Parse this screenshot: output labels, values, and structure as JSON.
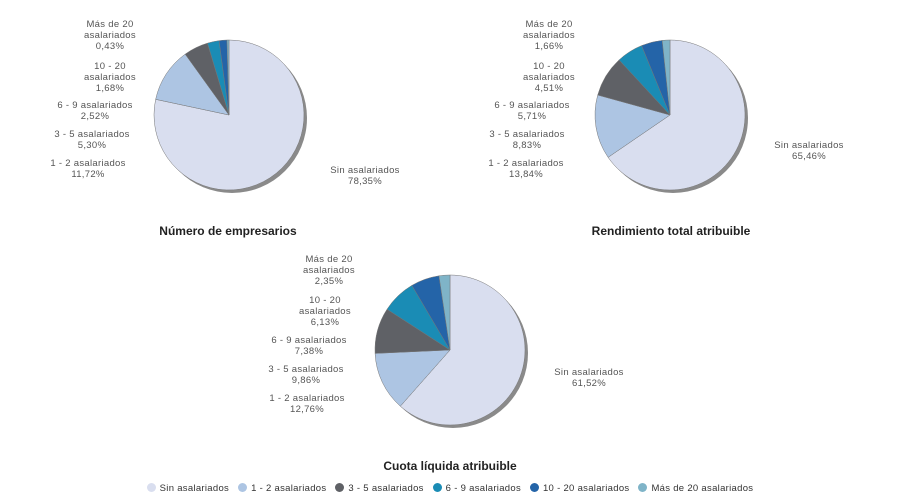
{
  "chart_data": [
    {
      "type": "pie",
      "title": "Número de empresarios",
      "categories": [
        "Sin asalariados",
        "1 - 2 asalariados",
        "3 - 5 asalariados",
        "6 - 9 asalariados",
        "10 - 20 asalariados",
        "Más de 20 asalariados"
      ],
      "values": [
        78.35,
        11.72,
        5.3,
        2.52,
        1.68,
        0.43
      ],
      "labels": [
        "78,35%",
        "11,72%",
        "5,30%",
        "2,52%",
        "1,68%",
        "0,43%"
      ]
    },
    {
      "type": "pie",
      "title": "Rendimiento total atribuible",
      "categories": [
        "Sin asalariados",
        "1 - 2 asalariados",
        "3 - 5 asalariados",
        "6 - 9 asalariados",
        "10 - 20 asalariados",
        "Más de 20 asalariados"
      ],
      "values": [
        65.46,
        13.84,
        8.83,
        5.71,
        4.51,
        1.66
      ],
      "labels": [
        "65,46%",
        "13,84%",
        "8,83%",
        "5,71%",
        "4,51%",
        "1,66%"
      ]
    },
    {
      "type": "pie",
      "title": "Cuota líquida atribuible",
      "categories": [
        "Sin asalariados",
        "1 - 2 asalariados",
        "3 - 5 asalariados",
        "6 - 9 asalariados",
        "10 - 20 asalariados",
        "Más de 20 asalariados"
      ],
      "values": [
        61.52,
        12.76,
        9.86,
        7.38,
        6.13,
        2.35
      ],
      "labels": [
        "61,52%",
        "12,76%",
        "9,86%",
        "7,38%",
        "6,13%",
        "2,35%"
      ]
    }
  ],
  "legend": {
    "position": "bottom",
    "items": [
      "Sin asalariados",
      "1 - 2 asalariados",
      "3 - 5 asalariados",
      "6 - 9 asalariados",
      "10 - 20 asalariados",
      "Más de 20 asalariados"
    ]
  },
  "colors": [
    "#d9deef",
    "#adc5e3",
    "#5f6166",
    "#1a8cb5",
    "#2464a8",
    "#7fb4c8"
  ],
  "label_names": {
    "0": "Sin asalariados",
    "1": "1 - 2 asalariados",
    "2": "3 - 5 asalariados",
    "3": "6 - 9 asalariados",
    "4a": "10 - 20",
    "4b": "asalariados",
    "5a": "Más de 20",
    "5b": "asalariados"
  }
}
